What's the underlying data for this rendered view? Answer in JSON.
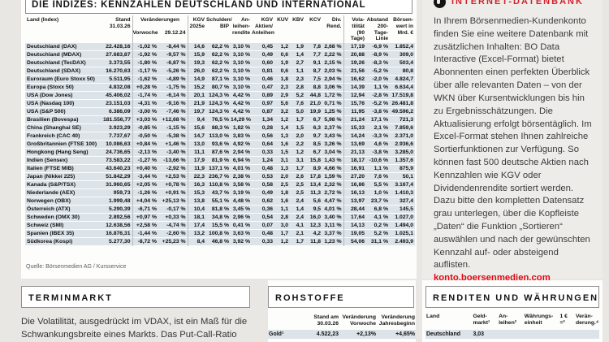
{
  "indices": {
    "title": "DIE INDIZES: KENNZAHLEN DEUTSCHLAND UND INTERNATIONAL",
    "header": {
      "land": "Land (Index)",
      "stand": "Stand\n31.03.26",
      "veraenderungen": "Veränderungen",
      "vorwoche": "Vorwoche",
      "stichtag": "29.12.24",
      "cols": [
        "KGV\n2025e",
        "Schulden/\nBIP",
        "An-\nleihen-\nrendite",
        "KGV\nAktien/\nAnleihen",
        "KUV",
        "KBV",
        "KCV",
        "Div.\nRend.",
        "Vola-\ntilität\n(90 Tage)",
        "Abstand\n200-Tage-\nLinie",
        "Börsen-\nwert in\nMrd. €"
      ]
    },
    "rows": [
      [
        "Deutschland (DAX)",
        "22.428,16",
        "-1,02 %",
        "-8,44 %",
        "14,6",
        "62,2 %",
        "3,10 %",
        "0,45",
        "1,2",
        "1,9",
        "7,8",
        "2,68 %",
        "17,19",
        "-6,9 %",
        "1.852,4"
      ],
      [
        "Deutschland (MDAX)",
        "27.683,87",
        "-1,92 %",
        "-9,57 %",
        "15,9",
        "62,2 %",
        "3,10 %",
        "0,49",
        "0,6",
        "1,4",
        "7,7",
        "2,22 %",
        "20,88",
        "-8,9 %",
        "309,0"
      ],
      [
        "Deutschland (TecDAX)",
        "3.373,55",
        "-1,80 %",
        "-6,87 %",
        "19,3",
        "62,2 %",
        "3,10 %",
        "0,60",
        "1,9",
        "2,7",
        "9,1",
        "2,15 %",
        "19,26",
        "-8,3 %",
        "503,4"
      ],
      [
        "Deutschland (SDAX)",
        "16.270,63",
        "-1,17 %",
        "-5,26 %",
        "26,0",
        "62,2 %",
        "3,10 %",
        "0,81",
        "0,6",
        "1,1",
        "8,7",
        "2,03 %",
        "21,56",
        "-5,2 %",
        "80,8"
      ],
      [
        "Euroraum (Euro Stoxx 50)",
        "5.511,95",
        "-1,62 %",
        "-4,89 %",
        "14,9",
        "87,1 %",
        "3,10 %",
        "0,46",
        "1,8",
        "2,3",
        "7,5",
        "2,94 %",
        "16,62",
        "-2,0 %",
        "4.824,7"
      ],
      [
        "Europa (Stoxx 50)",
        "4.832,08",
        "+0,28 %",
        "-1,75 %",
        "15,2",
        "80,7 %",
        "3,10 %",
        "0,47",
        "2,3",
        "2,8",
        "8,8",
        "3,06 %",
        "14,39",
        "1,1 %",
        "6.634,4"
      ],
      [
        "USA (Dow Jones)",
        "45.406,02",
        "-1,74 %",
        "-6,14 %",
        "20,1",
        "124,3 %",
        "4,42 %",
        "0,89",
        "2,9",
        "5,2",
        "44,8",
        "1,72 %",
        "12,94",
        "-2,8 %",
        "17.519,8"
      ],
      [
        "USA (Nasdaq 100)",
        "23.151,03",
        "-4,31 %",
        "-9,16 %",
        "21,9",
        "124,3 %",
        "4,42 %",
        "0,97",
        "5,6",
        "7,6",
        "21,0",
        "0,71 %",
        "15,76",
        "-5,2 %",
        "26.481,8"
      ],
      [
        "USA (S&P 500)",
        "6.386,09",
        "-3,00 %",
        "-7,46 %",
        "19,7",
        "124,3 %",
        "4,42 %",
        "0,87",
        "3,2",
        "5,0",
        "19,9",
        "1,25 %",
        "11,95",
        "-3,8 %",
        "49.596,2"
      ],
      [
        "Brasilien (Bovespa)",
        "181.556,77",
        "+3,03 %",
        "+12,68 %",
        "9,4",
        "76,5 %",
        "14,29 %",
        "1,34",
        "1,2",
        "1,7",
        "6,7",
        "5,98 %",
        "21,24",
        "17,1 %",
        "721,3"
      ],
      [
        "China (Shanghai SE)",
        "3.923,29",
        "-0,85 %",
        "-1,15 %",
        "15,6",
        "88,3 %",
        "1,82 %",
        "0,28",
        "1,4",
        "1,5",
        "6,3",
        "2,37 %",
        "15,33",
        "2,1 %",
        "7.859,6"
      ],
      [
        "Frankreich (CAC 40)",
        "7.737,67",
        "-0,50 %",
        "-5,38 %",
        "14,7",
        "113,0 %",
        "3,83 %",
        "0,56",
        "1,3",
        "2,0",
        "9,7",
        "3,43 %",
        "14,24",
        "-3,3 %",
        "2.371,0"
      ],
      [
        "Großbritannien (FTSE 100)",
        "10.086,63",
        "+0,84 %",
        "+1,46 %",
        "13,0",
        "93,6 %",
        "4,92 %",
        "0,64",
        "1,6",
        "2,2",
        "8,5",
        "3,26 %",
        "13,69",
        "4,6 %",
        "2.936,6"
      ],
      [
        "Hongkong (Hang Seng)",
        "24.736,65",
        "-2,13 %",
        "-3,40 %",
        "11,1",
        "87,6 %",
        "2,94 %",
        "0,33",
        "1,5",
        "1,2",
        "6,7",
        "3,04 %",
        "21,13",
        "-3,8 %",
        "3.285,0"
      ],
      [
        "Indien (Sensex)",
        "73.583,22",
        "-1,27 %",
        "-13,66 %",
        "17,9",
        "81,9 %",
        "6,94 %",
        "1,24",
        "3,1",
        "3,1",
        "15,8",
        "1,43 %",
        "18,17",
        "-10,6 %",
        "1.357,6"
      ],
      [
        "Italien (FTSE MIB)",
        "43.640,23",
        "+0,40 %",
        "-2,92 %",
        "11,9",
        "137,1 %",
        "4,01 %",
        "0,48",
        "1,3",
        "1,7",
        "8,9",
        "4,66 %",
        "16,91",
        "1,1 %",
        "875,9"
      ],
      [
        "Japan (Nikkei 225)",
        "51.842,29",
        "-3,44 %",
        "+2,53 %",
        "22,3",
        "236,7 %",
        "2,38 %",
        "0,53",
        "2,0",
        "2,6",
        "17,8",
        "1,59 %",
        "27,20",
        "7,6 %",
        "50,1"
      ],
      [
        "Kanada (S&P/TSX)",
        "31.960,65",
        "+2,05 %",
        "+0,78 %",
        "16,3",
        "110,8 %",
        "3,58 %",
        "0,58",
        "2,5",
        "2,5",
        "13,4",
        "2,32 %",
        "16,86",
        "5,5 %",
        "3.167,4"
      ],
      [
        "Niederlande (AEX)",
        "959,73",
        "-1,26 %",
        "+0,91 %",
        "15,3",
        "43,7 %",
        "3,19 %",
        "0,49",
        "1,8",
        "2,5",
        "11,3",
        "2,72 %",
        "16,13",
        "1,0 %",
        "1.410,3"
      ],
      [
        "Norwegen (OBX)",
        "1.999,48",
        "+4,04 %",
        "+25,13 %",
        "13,8",
        "55,1 %",
        "4,48 %",
        "0,62",
        "1,6",
        "2,4",
        "5,6",
        "4,47 %",
        "13,97",
        "23,7 %",
        "327,4"
      ],
      [
        "Österreich (ATX)",
        "5.290,39",
        "-6,71 %",
        "-0,17 %",
        "10,4",
        "81,8 %",
        "3,45 %",
        "0,36",
        "1,1",
        "1,4",
        "9,5",
        "4,01 %",
        "28,44",
        "6,8 %",
        "145,5"
      ],
      [
        "Schweden (OMX 30)",
        "2.892,56",
        "+0,97 %",
        "+0,33 %",
        "18,1",
        "34,8 %",
        "2,96 %",
        "0,54",
        "2,8",
        "2,4",
        "16,0",
        "3,40 %",
        "17,64",
        "4,1 %",
        "1.027,0"
      ],
      [
        "Schweiz (SMI)",
        "12.638,56",
        "+2,58 %",
        "-4,74 %",
        "17,4",
        "15,5 %",
        "0,41 %",
        "0,07",
        "3,0",
        "4,1",
        "12,3",
        "3,11 %",
        "14,13",
        "0,2 %",
        "1.494,0"
      ],
      [
        "Spanien (IBEX 35)",
        "16.876,31",
        "-1,44 %",
        "-2,60 %",
        "13,2",
        "100,8 %",
        "3,63 %",
        "0,48",
        "1,7",
        "2,1",
        "4,2",
        "3,37 %",
        "19,05",
        "5,2 %",
        "1.025,1"
      ],
      [
        "Südkorea (Kospi)",
        "5.277,30",
        "-8,72 %",
        "+25,23 %",
        "8,4",
        "46,8 %",
        "3,92 %",
        "0,33",
        "1,2",
        "1,7",
        "11,8",
        "1,23 %",
        "54,06",
        "31,1 %",
        "2.493,9"
      ]
    ],
    "source": "Quelle: Börsenmedien AG / Kursservice"
  },
  "sidebar": {
    "title": "INTERNET-DATENBANK",
    "body": "In Ihrem Börsenmedien-Kundenkonto finden Sie eine weitere Datenbank mit zusätzlichen Inhalten: BO Data Interactive (Excel-Format) bietet Abonnenten einen perfekten Überblick über alle relevanten Daten – von der WKN über Kursentwicklungen bis hin zu Ergebnisschätzungen. Die Aktualisierung erfolgt börsentäglich. Im Excel-Format stehen Ihnen zahlreiche Sortierfunktionen zur Verfügung. So können fast 500 deutsche Aktien nach Kennzahlen wie KGV oder Dividendenrendite sortiert werden. Dazu bitte den kompletten Datensatz grau unterlegen, über die Kopfleiste „Daten“ die Funktion „Sortieren“ auswählen und nach der gewünschten Kennzahl auf- oder absteigend auflisten.",
    "link": "konto.boersenmedien.com"
  },
  "terminmarkt": {
    "title": "TERMINMARKT",
    "text": "Die Volatilität, ausgedrückt im VDAX, ist ein Maß für die Schwankungsbreite eines Markts. Das Put-Call-Ratio"
  },
  "rohstoffe": {
    "title": "ROHSTOFFE",
    "headers": [
      "",
      "Stand am\n30.03.26",
      "Veränderung\nVorwoche",
      "Veränderung\nJahresbeginn"
    ],
    "rows": [
      [
        "Gold¹",
        "4.522,23",
        "+2,13%",
        "+4,65%"
      ]
    ]
  },
  "renditen": {
    "title": "RENDITEN UND WÄHRUNGEN",
    "headers": [
      "Land",
      "Geld-\nmarkt¹",
      "An-\nleihen²",
      "Währungs-\neinheit",
      "1 €\n=³",
      "Verän-\nderung.⁴"
    ],
    "rows": [
      [
        "Deutschland",
        "3,03",
        "",
        "",
        "",
        ""
      ]
    ]
  },
  "colors": {
    "accent_red": "#d2232a",
    "link_red": "#e30613",
    "row_stripe": "#dce3e9",
    "page_bg": "#e8e7e4"
  }
}
